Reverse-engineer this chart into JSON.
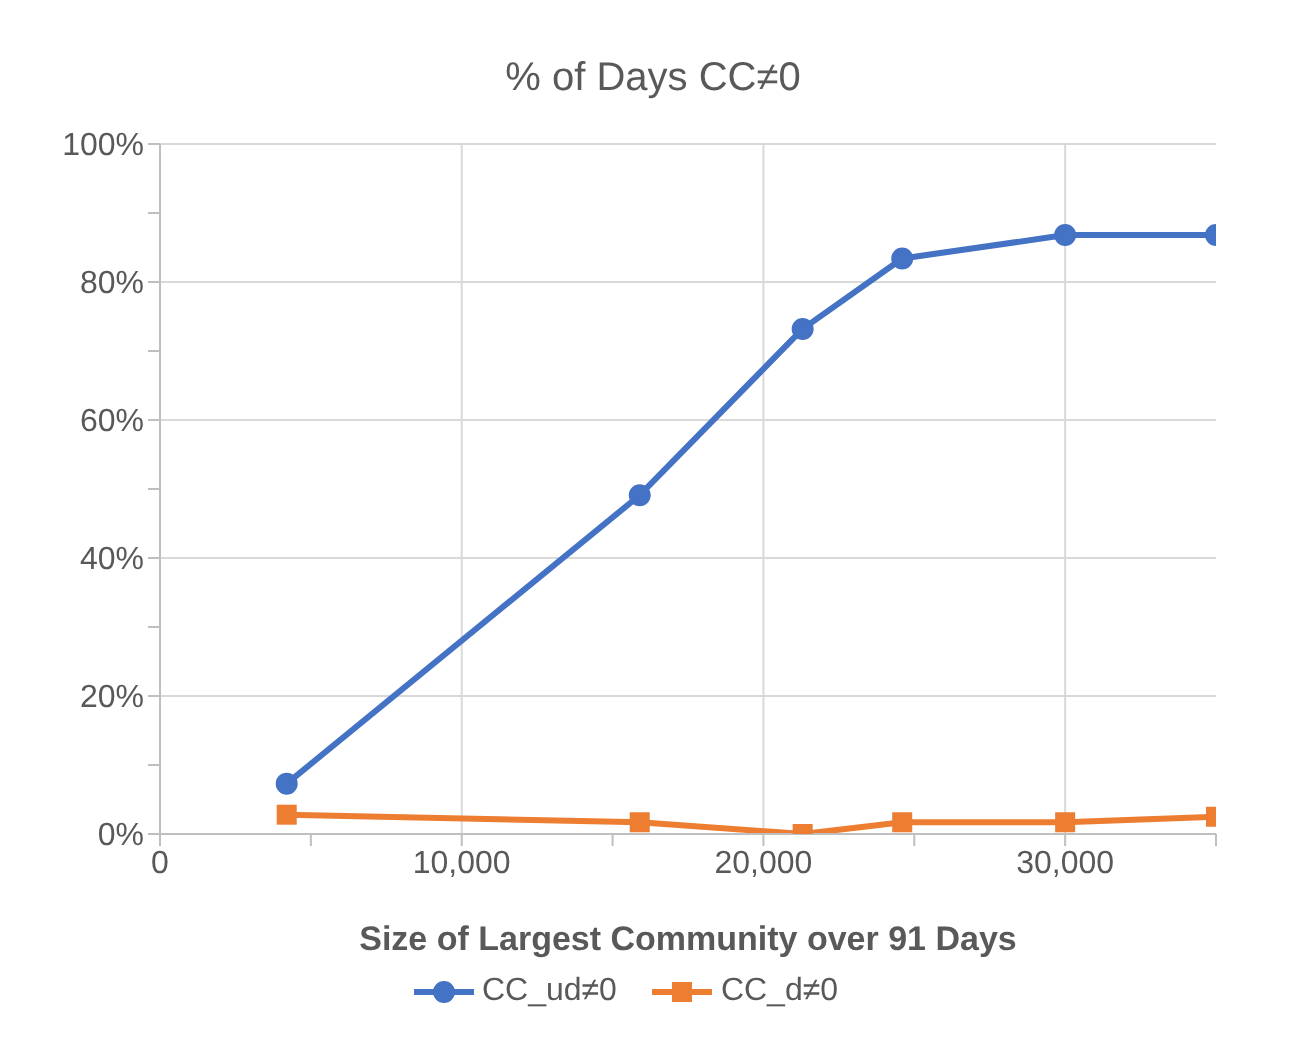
{
  "chart_data": {
    "type": "line",
    "title": "% of Days CC≠0",
    "xlabel": "Size of Largest Community over 91 Days",
    "x": [
      4200,
      15900,
      21300,
      24600,
      30000,
      35000
    ],
    "series": [
      {
        "name": "CC_ud≠0",
        "color": "#4472c4",
        "values": [
          7.3,
          49.1,
          73.2,
          83.4,
          86.8,
          86.8
        ]
      },
      {
        "name": "CC_d≠0",
        "color": "#ed7d31",
        "values": [
          2.8,
          1.7,
          0,
          1.7,
          1.7,
          2.5
        ],
        "marker": "square"
      }
    ],
    "xlim": [
      0,
      35000
    ],
    "xticks": [
      0,
      {
        "value": 5000,
        "label": null
      },
      {
        "value": 10000,
        "label": "10,000"
      },
      {
        "value": 15000,
        "label": null
      },
      {
        "value": 20000,
        "label": "20,000"
      },
      {
        "value": 25000,
        "label": null
      },
      {
        "value": 30000,
        "label": "30,000"
      },
      {
        "value": 35000,
        "label": null
      }
    ],
    "ylim": [
      0,
      100
    ],
    "yticks": [
      {
        "value": 0,
        "label": "0%"
      },
      {
        "value": 10,
        "label": null
      },
      {
        "value": 20,
        "label": "20%"
      },
      {
        "value": 30,
        "label": null
      },
      {
        "value": 40,
        "label": "40%"
      },
      {
        "value": 50,
        "label": null
      },
      {
        "value": 60,
        "label": "60%"
      },
      {
        "value": 70,
        "label": null
      },
      {
        "value": 80,
        "label": "80%"
      },
      {
        "value": 90,
        "label": null
      },
      {
        "value": 100,
        "label": "100%"
      }
    ],
    "grid": true,
    "legend": "bottom",
    "marker": "circle",
    "line_style": "solid"
  }
}
